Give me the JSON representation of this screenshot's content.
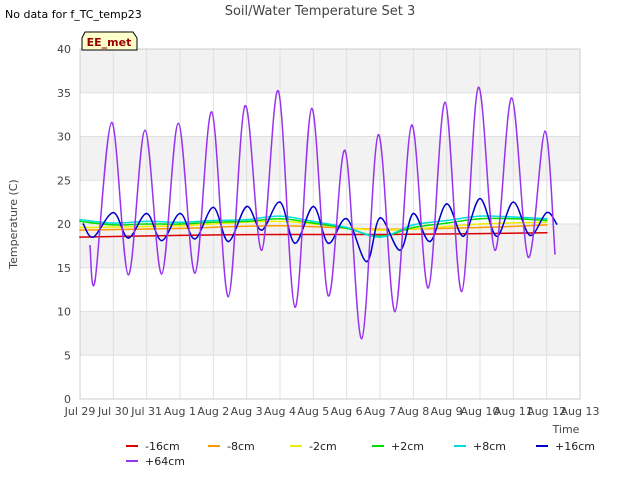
{
  "header": {
    "no_data_note": "No data for f_TC_temp23"
  },
  "badge": {
    "label": "EE_met",
    "bg": "#ffffcc",
    "text_color": "#990000"
  },
  "chart_data": {
    "type": "line",
    "title": "Soil/Water Temperature Set 3",
    "xlabel": "Time",
    "ylabel": "Temperature (C)",
    "x_start": "2024-07-29",
    "xlim": [
      "2024-07-29",
      "2024-08-13"
    ],
    "ylim": [
      0,
      40
    ],
    "yticks": [
      0,
      5,
      10,
      15,
      20,
      25,
      30,
      35,
      40
    ],
    "xtick_labels": [
      "Jul 29",
      "Jul 30",
      "Jul 31",
      "Aug 1",
      "Aug 2",
      "Aug 3",
      "Aug 4",
      "Aug 5",
      "Aug 6",
      "Aug 7",
      "Aug 8",
      "Aug 9",
      "Aug 10",
      "Aug 11",
      "Aug 12",
      "Aug 13"
    ],
    "grid": true,
    "band_shading": "alternate-5",
    "legend_placement": "bottom",
    "series": [
      {
        "name": "-16cm",
        "color": "#dd0000",
        "x": [
          "Jul 29",
          "Aug 1",
          "Aug 4",
          "Aug 7",
          "Aug 10",
          "Aug 12"
        ],
        "values": [
          18.5,
          18.7,
          18.8,
          18.8,
          18.9,
          19.0
        ]
      },
      {
        "name": "-8cm",
        "color": "#ff9900",
        "x": [
          "Jul 29",
          "Aug 1",
          "Aug 4",
          "Aug 7",
          "Aug 10",
          "Aug 12"
        ],
        "values": [
          19.3,
          19.5,
          19.8,
          19.4,
          19.6,
          19.9
        ]
      },
      {
        "name": "-2cm",
        "color": "#eeee00",
        "x": [
          "Jul 29",
          "Aug 1",
          "Aug 4",
          "Aug 7",
          "Aug 10",
          "Aug 12"
        ],
        "values": [
          19.6,
          19.8,
          20.3,
          19.3,
          20.0,
          20.2
        ]
      },
      {
        "name": "+2cm",
        "color": "#00dd00",
        "x": [
          "Jul 29",
          "Jul 30",
          "Jul 31",
          "Aug 1",
          "Aug 2",
          "Aug 3",
          "Aug 4",
          "Aug 5",
          "Aug 6",
          "Aug 7",
          "Aug 8",
          "Aug 9",
          "Aug 10",
          "Aug 11",
          "Aug 12"
        ],
        "values": [
          20.3,
          19.9,
          20.0,
          20.0,
          20.2,
          20.3,
          20.6,
          20.1,
          19.5,
          18.6,
          19.6,
          20.1,
          20.6,
          20.6,
          20.4
        ]
      },
      {
        "name": "+8cm",
        "color": "#00dddd",
        "x": [
          "Jul 29",
          "Jul 30",
          "Jul 31",
          "Aug 1",
          "Aug 2",
          "Aug 3",
          "Aug 4",
          "Aug 5",
          "Aug 6",
          "Aug 7",
          "Aug 8",
          "Aug 9",
          "Aug 10",
          "Aug 11",
          "Aug 12"
        ],
        "values": [
          20.5,
          20.1,
          20.3,
          20.2,
          20.4,
          20.5,
          20.9,
          20.3,
          19.6,
          18.5,
          19.9,
          20.4,
          20.9,
          20.8,
          20.6
        ]
      },
      {
        "name": "+16cm",
        "color": "#0000cc",
        "x": [
          "Jul 29.1",
          "Jul 29.4",
          "Jul 30.0",
          "Jul 30.45",
          "Jul 31.0",
          "Jul 31.45",
          "Aug 1.0",
          "Aug 1.45",
          "Aug 2.0",
          "Aug 2.45",
          "Aug 3.0",
          "Aug 3.45",
          "Aug 4.0",
          "Aug 4.45",
          "Aug 5.0",
          "Aug 5.45",
          "Aug 6.0",
          "Aug 6.6",
          "Aug 7.0",
          "Aug 7.6",
          "Aug 8.0",
          "Aug 8.5",
          "Aug 9.0",
          "Aug 9.5",
          "Aug 10.0",
          "Aug 10.5",
          "Aug 11.0",
          "Aug 11.5",
          "Aug 12.0",
          "Aug 12.3"
        ],
        "values": [
          20.0,
          18.5,
          21.3,
          18.4,
          21.2,
          18.1,
          21.2,
          18.3,
          21.9,
          18.0,
          22.0,
          19.3,
          22.5,
          17.8,
          22.0,
          17.8,
          20.6,
          15.7,
          20.7,
          17.0,
          21.2,
          18.0,
          22.3,
          18.6,
          22.9,
          18.6,
          22.5,
          18.7,
          21.3,
          20.0
        ]
      },
      {
        "name": "+64cm",
        "color": "#9933ee",
        "x": [
          "Jul 29.3",
          "Jul 29.45",
          "Jul 29.95",
          "Jul 30.45",
          "Jul 30.95",
          "Jul 31.45",
          "Jul 31.95",
          "Aug 1.45",
          "Aug 1.95",
          "Aug 2.45",
          "Aug 2.95",
          "Aug 3.45",
          "Aug 3.95",
          "Aug 4.45",
          "Aug 4.95",
          "Aug 5.45",
          "Aug 5.95",
          "Aug 6.45",
          "Aug 6.95",
          "Aug 7.45",
          "Aug 7.95",
          "Aug 8.45",
          "Aug 8.95",
          "Aug 9.45",
          "Aug 9.95",
          "Aug 10.45",
          "Aug 10.95",
          "Aug 11.45",
          "Aug 11.95",
          "Aug 12.25"
        ],
        "values": [
          17.5,
          13.5,
          31.6,
          14.2,
          30.7,
          14.3,
          31.5,
          14.4,
          32.8,
          11.7,
          33.5,
          17.0,
          35.2,
          10.5,
          33.2,
          11.8,
          28.4,
          6.9,
          30.2,
          10.0,
          31.3,
          12.7,
          33.9,
          12.3,
          35.6,
          17.0,
          34.4,
          16.2,
          30.6,
          16.6
        ]
      }
    ]
  }
}
